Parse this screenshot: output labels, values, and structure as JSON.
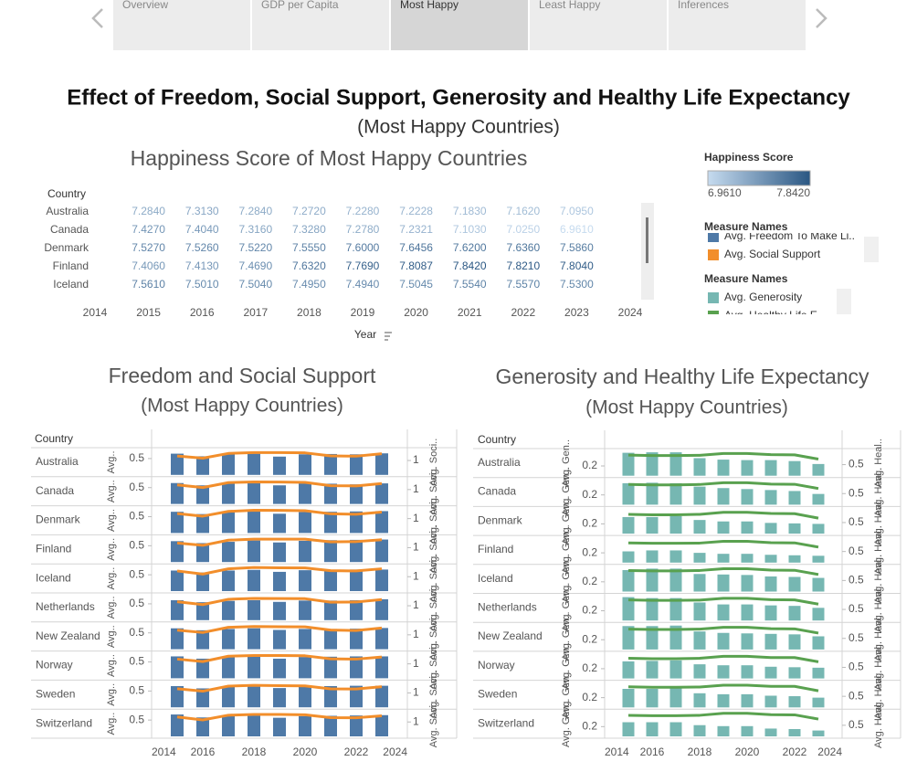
{
  "nav": {
    "tabs": [
      "Overview",
      "GDP per Capita",
      "Most Happy",
      "Least Happy",
      "Inferences"
    ],
    "active": 2
  },
  "header": {
    "title": "Effect of Freedom, Social Support, Generosity and Healthy Life Expectancy",
    "subtitle": "(Most Happy Countries)"
  },
  "chart_data": [
    {
      "type": "text-table",
      "title": "Happiness Score of Most Happy Countries",
      "row_header": "Country",
      "x_label": "Year",
      "categories": [
        "Australia",
        "Canada",
        "Denmark",
        "Finland",
        "Iceland"
      ],
      "x": [
        2015,
        2016,
        2017,
        2018,
        2019,
        2020,
        2021,
        2022,
        2023
      ],
      "xlim": [
        2014,
        2024
      ],
      "xticks": [
        2014,
        2015,
        2016,
        2017,
        2018,
        2019,
        2020,
        2021,
        2022,
        2023,
        2024
      ],
      "values": [
        [
          7.284,
          7.313,
          7.284,
          7.272,
          7.228,
          7.2228,
          7.183,
          7.162,
          7.095
        ],
        [
          7.427,
          7.404,
          7.316,
          7.328,
          7.278,
          7.2321,
          7.103,
          7.025,
          6.961
        ],
        [
          7.527,
          7.526,
          7.522,
          7.555,
          7.6,
          7.6456,
          7.62,
          7.636,
          7.586
        ],
        [
          7.406,
          7.413,
          7.469,
          7.632,
          7.769,
          7.8087,
          7.842,
          7.821,
          7.804
        ],
        [
          7.561,
          7.501,
          7.504,
          7.495,
          7.494,
          7.5045,
          7.554,
          7.557,
          7.53
        ]
      ],
      "value_labels": [
        [
          "7.2840",
          "7.3130",
          "7.2840",
          "7.2720",
          "7.2280",
          "7.2228",
          "7.1830",
          "7.1620",
          "7.0950"
        ],
        [
          "7.4270",
          "7.4040",
          "7.3160",
          "7.3280",
          "7.2780",
          "7.2321",
          "7.1030",
          "7.0250",
          "6.9610"
        ],
        [
          "7.5270",
          "7.5260",
          "7.5220",
          "7.5550",
          "7.6000",
          "7.6456",
          "7.6200",
          "7.6360",
          "7.5860"
        ],
        [
          "7.4060",
          "7.4130",
          "7.4690",
          "7.6320",
          "7.7690",
          "7.8087",
          "7.8420",
          "7.8210",
          "7.8040"
        ],
        [
          "7.5610",
          "7.5010",
          "7.5040",
          "7.4950",
          "7.4940",
          "7.5045",
          "7.5540",
          "7.5570",
          "7.5300"
        ]
      ],
      "color_title": "Happiness Score",
      "color_lim": [
        {
          "value": 6.961,
          "label": "6.9610"
        },
        {
          "value": 7.842,
          "label": "7.8420"
        }
      ],
      "colors": [
        "#c6dbef",
        "#2a5783"
      ]
    },
    {
      "type": "bar-line",
      "title": "Freedom and Social Support",
      "subtitle": "(Most Happy Countries)",
      "row_header": "Country",
      "legend_title": "Measure Names",
      "categories": [
        "Australia",
        "Canada",
        "Denmark",
        "Finland",
        "Iceland",
        "Netherlands",
        "New Zealand",
        "Norway",
        "Sweden",
        "Switzerland"
      ],
      "x": [
        2015,
        2016,
        2017,
        2018,
        2019,
        2020,
        2021,
        2022,
        2023
      ],
      "xlim": [
        2014,
        2024
      ],
      "xticks": [
        2014,
        2016,
        2018,
        2020,
        2022,
        2024
      ],
      "ylim": [
        0,
        0.75
      ],
      "yticks": [
        0.5
      ],
      "y2lim": [
        0,
        1.7
      ],
      "y2ticks": [
        1
      ],
      "series": [
        {
          "name": "Avg. Freedom To Make Li..",
          "axis_label": "Avg..",
          "color": "#4e79a7",
          "mark": "bar",
          "values": [
            [
              0.65,
              0.57,
              0.64,
              0.65,
              0.56,
              0.63,
              0.64,
              0.63,
              0.66
            ],
            [
              0.64,
              0.57,
              0.64,
              0.64,
              0.57,
              0.63,
              0.62,
              0.6,
              0.63
            ],
            [
              0.65,
              0.58,
              0.63,
              0.66,
              0.59,
              0.64,
              0.65,
              0.66,
              0.67
            ],
            [
              0.64,
              0.58,
              0.62,
              0.66,
              0.6,
              0.65,
              0.67,
              0.68,
              0.69
            ],
            [
              0.63,
              0.57,
              0.63,
              0.65,
              0.59,
              0.64,
              0.65,
              0.66,
              0.66
            ],
            [
              0.61,
              0.55,
              0.59,
              0.61,
              0.56,
              0.6,
              0.6,
              0.61,
              0.64
            ],
            [
              0.64,
              0.58,
              0.62,
              0.64,
              0.59,
              0.62,
              0.62,
              0.63,
              0.65
            ],
            [
              0.67,
              0.6,
              0.64,
              0.66,
              0.6,
              0.65,
              0.66,
              0.67,
              0.67
            ],
            [
              0.65,
              0.58,
              0.63,
              0.65,
              0.59,
              0.64,
              0.65,
              0.66,
              0.66
            ],
            [
              0.67,
              0.58,
              0.62,
              0.65,
              0.57,
              0.62,
              0.63,
              0.64,
              0.65
            ]
          ]
        },
        {
          "name": "Avg. Social Support",
          "axis_label": "Avg. Soci..",
          "color": "#f28e2b",
          "mark": "line",
          "axis": "y2",
          "values": [
            [
              1.31,
              1.16,
              1.49,
              1.55,
              1.55,
              1.53,
              1.32,
              1.3,
              1.47
            ],
            [
              1.32,
              1.14,
              1.48,
              1.53,
              1.52,
              1.5,
              1.27,
              1.25,
              1.42
            ],
            [
              1.35,
              1.17,
              1.5,
              1.58,
              1.57,
              1.55,
              1.33,
              1.3,
              1.45
            ],
            [
              1.32,
              1.16,
              1.52,
              1.59,
              1.59,
              1.59,
              1.4,
              1.42,
              1.55
            ],
            [
              1.4,
              1.18,
              1.55,
              1.64,
              1.62,
              1.61,
              1.42,
              1.4,
              1.55
            ],
            [
              1.28,
              1.08,
              1.45,
              1.51,
              1.5,
              1.49,
              1.25,
              1.26,
              1.43
            ],
            [
              1.32,
              1.16,
              1.52,
              1.58,
              1.56,
              1.55,
              1.33,
              1.3,
              1.47
            ],
            [
              1.33,
              1.16,
              1.53,
              1.58,
              1.58,
              1.56,
              1.35,
              1.33,
              1.48
            ],
            [
              1.29,
              1.12,
              1.47,
              1.53,
              1.5,
              1.49,
              1.28,
              1.27,
              1.43
            ],
            [
              1.35,
              1.14,
              1.47,
              1.52,
              1.52,
              1.5,
              1.3,
              1.29,
              1.43
            ]
          ]
        }
      ]
    },
    {
      "type": "bar-line",
      "title": "Generosity and Healthy Life Expectancy",
      "subtitle": "(Most Happy Countries)",
      "row_header": "Country",
      "legend_title": "Measure Names",
      "categories": [
        "Australia",
        "Canada",
        "Denmark",
        "Finland",
        "Iceland",
        "Netherlands",
        "New Zealand",
        "Norway",
        "Sweden",
        "Switzerland"
      ],
      "x": [
        2015,
        2016,
        2017,
        2018,
        2019,
        2020,
        2021,
        2022,
        2023
      ],
      "xlim": [
        2014,
        2024
      ],
      "xticks": [
        2014,
        2016,
        2018,
        2020,
        2022,
        2024
      ],
      "ylim": [
        0,
        0.5
      ],
      "yticks": [
        0.2
      ],
      "y2lim": [
        0,
        1.1
      ],
      "y2ticks": [
        0.5
      ],
      "series": [
        {
          "name": "Avg. Generosity",
          "axis_label": "Avg. Gen..",
          "color": "#76b7b2",
          "mark": "bar",
          "values": [
            [
              0.47,
              0.48,
              0.48,
              0.36,
              0.33,
              0.32,
              0.32,
              0.3,
              0.24
            ],
            [
              0.44,
              0.45,
              0.44,
              0.37,
              0.34,
              0.32,
              0.3,
              0.28,
              0.22
            ],
            [
              0.34,
              0.34,
              0.36,
              0.28,
              0.25,
              0.25,
              0.22,
              0.21,
              0.2
            ],
            [
              0.23,
              0.25,
              0.25,
              0.2,
              0.18,
              0.18,
              0.16,
              0.15,
              0.14
            ],
            [
              0.44,
              0.47,
              0.47,
              0.36,
              0.35,
              0.34,
              0.31,
              0.3,
              0.28
            ],
            [
              0.48,
              0.46,
              0.46,
              0.37,
              0.33,
              0.33,
              0.31,
              0.3,
              0.26
            ],
            [
              0.48,
              0.48,
              0.49,
              0.37,
              0.34,
              0.33,
              0.32,
              0.31,
              0.27
            ],
            [
              0.35,
              0.36,
              0.37,
              0.29,
              0.27,
              0.27,
              0.24,
              0.23,
              0.22
            ],
            [
              0.38,
              0.38,
              0.39,
              0.29,
              0.27,
              0.27,
              0.24,
              0.23,
              0.2
            ],
            [
              0.29,
              0.29,
              0.29,
              0.23,
              0.21,
              0.21,
              0.16,
              0.15,
              0.12
            ]
          ]
        },
        {
          "name": "Avg. Healthy Life E..",
          "axis_label": "Avg. Heal..",
          "color": "#59a14f",
          "mark": "line",
          "axis": "y2",
          "values": [
            [
              0.93,
              0.91,
              0.91,
              0.92,
              1.0,
              1.0,
              0.95,
              0.94,
              0.75
            ],
            [
              0.91,
              0.89,
              0.89,
              0.91,
              0.99,
              0.99,
              0.93,
              0.92,
              0.73
            ],
            [
              0.87,
              0.85,
              0.85,
              0.87,
              0.96,
              0.96,
              0.91,
              0.9,
              0.7
            ],
            [
              0.89,
              0.87,
              0.87,
              0.88,
              0.96,
              0.96,
              0.9,
              0.89,
              0.7
            ],
            [
              0.95,
              0.93,
              0.93,
              0.95,
              1.03,
              1.03,
              0.97,
              0.96,
              0.77
            ],
            [
              0.93,
              0.91,
              0.91,
              0.92,
              1.0,
              1.0,
              0.94,
              0.93,
              0.74
            ],
            [
              0.92,
              0.9,
              0.9,
              0.92,
              1.0,
              1.0,
              0.94,
              0.93,
              0.74
            ],
            [
              0.91,
              0.89,
              0.89,
              0.91,
              1.0,
              1.0,
              0.94,
              0.94,
              0.75
            ],
            [
              0.93,
              0.91,
              0.91,
              0.92,
              1.0,
              1.0,
              0.95,
              0.95,
              0.75
            ],
            [
              0.95,
              0.93,
              0.93,
              0.95,
              1.04,
              1.04,
              0.98,
              0.97,
              0.78
            ]
          ]
        }
      ]
    }
  ]
}
